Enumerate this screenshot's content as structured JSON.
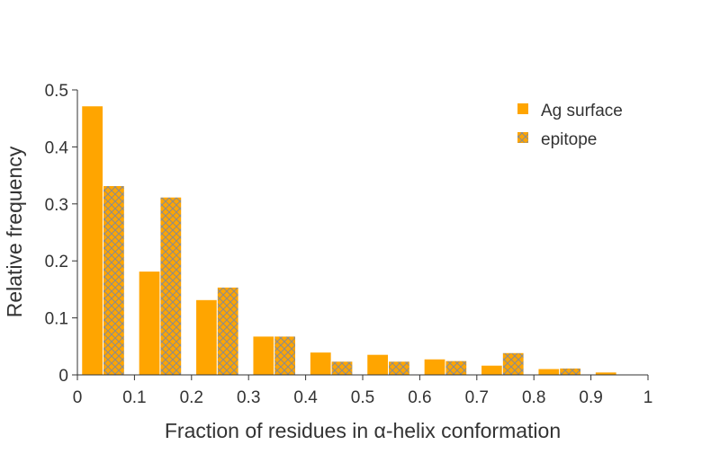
{
  "chart_data": {
    "type": "bar",
    "xlabel": "Fraction of residues in α-helix conformation",
    "ylabel": "Relative frequency",
    "xlim": [
      0,
      1
    ],
    "ylim": [
      0,
      0.5
    ],
    "x_ticks": [
      "0",
      "0.1",
      "0.2",
      "0.3",
      "0.4",
      "0.5",
      "0.6",
      "0.7",
      "0.8",
      "0.9",
      "1"
    ],
    "y_ticks": [
      "0",
      "0.1",
      "0.2",
      "0.3",
      "0.4",
      "0.5"
    ],
    "bin_edges": [
      0,
      0.1,
      0.2,
      0.3,
      0.4,
      0.5,
      0.6,
      0.7,
      0.8,
      0.9,
      1.0
    ],
    "series": [
      {
        "name": "Ag surface",
        "color": "#FFA500",
        "pattern": "solid",
        "values": [
          0.472,
          0.182,
          0.132,
          0.068,
          0.04,
          0.036,
          0.028,
          0.017,
          0.011,
          0.005
        ]
      },
      {
        "name": "epitope",
        "color": "#FFA500",
        "pattern": "crosshatch",
        "hatch_color": "#8C8C8C",
        "values": [
          0.332,
          0.312,
          0.154,
          0.068,
          0.024,
          0.024,
          0.025,
          0.039,
          0.012,
          0.0
        ]
      }
    ],
    "legend_position": "top-right",
    "grid": false
  }
}
